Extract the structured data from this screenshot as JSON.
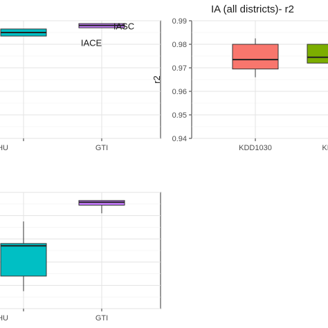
{
  "chart_data": [
    {
      "type": "box",
      "title": "",
      "xlabel": "",
      "ylabel": "",
      "ylim": [
        0.94,
        0.99
      ],
      "categories": [
        "HU",
        "GTI"
      ],
      "boxes": [
        {
          "category": "HU",
          "q1": 0.9835,
          "median": 0.985,
          "q3": 0.9865,
          "min": 0.9835,
          "max": 0.9865,
          "color": "#00bfc4"
        },
        {
          "category": "GTI",
          "q1": 0.987,
          "median": 0.988,
          "q3": 0.9888,
          "min": 0.987,
          "max": 0.9888,
          "color": "#c77cff"
        }
      ],
      "annotations": [
        {
          "text": "IASC",
          "x": "GTI",
          "y": 0.9875
        },
        {
          "text": "IACE",
          "x": "GTI",
          "y": 0.9805
        }
      ],
      "grid": true
    },
    {
      "type": "box",
      "title": "IA (all districts)- r2",
      "xlabel": "",
      "ylabel": "r2",
      "ylim": [
        0.94,
        0.99
      ],
      "y_ticks": [
        "0.94",
        "0.95",
        "0.96",
        "0.97",
        "0.98",
        "0.99"
      ],
      "categories": [
        "KDD1030",
        "KDD"
      ],
      "boxes": [
        {
          "category": "KDD1030",
          "q1": 0.9695,
          "median": 0.9735,
          "q3": 0.98,
          "min": 0.966,
          "max": 0.9825,
          "color": "#f8766d"
        },
        {
          "category": "KDD",
          "q1": 0.972,
          "median": 0.9745,
          "q3": 0.98,
          "min": 0.97,
          "max": 0.982,
          "color": "#7cae00"
        }
      ],
      "grid": true
    },
    {
      "type": "box",
      "title": "",
      "xlabel": "",
      "ylabel": "",
      "categories": [
        "HU",
        "GTI"
      ],
      "boxes": [
        {
          "category": "HU",
          "q1": 0.28,
          "median": 0.54,
          "q3": 0.56,
          "min": 0.15,
          "max": 0.75,
          "color": "#00bfc4"
        },
        {
          "category": "GTI",
          "q1": 0.89,
          "median": 0.915,
          "q3": 0.93,
          "min": 0.82,
          "max": 0.93,
          "color": "#c77cff"
        }
      ],
      "grid": true
    }
  ]
}
